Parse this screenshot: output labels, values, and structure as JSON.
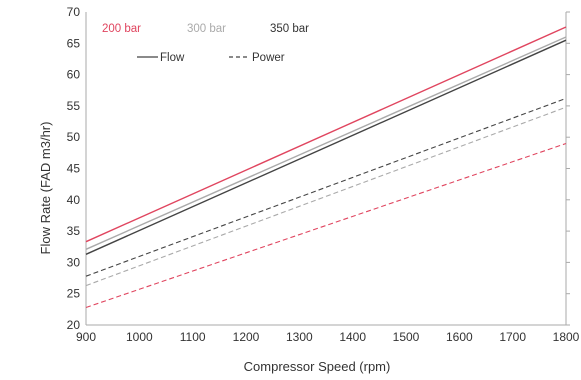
{
  "chart_data": {
    "type": "line",
    "xlabel": "Compressor Speed (rpm)",
    "ylabel": "Flow Rate (FAD m3/hr)",
    "xlim": [
      900,
      1800
    ],
    "ylim": [
      20,
      70
    ],
    "x_ticks": [
      "900",
      "1000",
      "1100",
      "1200",
      "1300",
      "1400",
      "1500",
      "1600",
      "1700",
      "1800"
    ],
    "y_ticks": [
      "20",
      "25",
      "30",
      "35",
      "40",
      "45",
      "50",
      "55",
      "60",
      "65",
      "70"
    ],
    "grid": false,
    "legend": {
      "placement": "top-left",
      "pressures": [
        {
          "label": "200 bar",
          "color": "#e0455f"
        },
        {
          "label": "300 bar",
          "color": "#aaaaaa"
        },
        {
          "label": "350 bar",
          "color": "#333333"
        }
      ],
      "styles": [
        {
          "label": "Flow",
          "dash": "solid"
        },
        {
          "label": "Power",
          "dash": "dashed"
        }
      ]
    },
    "series": [
      {
        "pressure": "200 bar",
        "kind": "Flow",
        "color": "#e0455f",
        "dash": "solid",
        "x": [
          900,
          1800
        ],
        "y": [
          33.3,
          67.6
        ]
      },
      {
        "pressure": "300 bar",
        "kind": "Flow",
        "color": "#aaaaaa",
        "dash": "solid",
        "x": [
          900,
          1800
        ],
        "y": [
          32.1,
          66.0
        ]
      },
      {
        "pressure": "350 bar",
        "kind": "Flow",
        "color": "#444444",
        "dash": "solid",
        "x": [
          900,
          1800
        ],
        "y": [
          31.3,
          65.5
        ]
      },
      {
        "pressure": "350 bar",
        "kind": "Power",
        "color": "#444444",
        "dash": "dashed",
        "x": [
          900,
          1800
        ],
        "y": [
          27.8,
          56.2
        ]
      },
      {
        "pressure": "300 bar",
        "kind": "Power",
        "color": "#aaaaaa",
        "dash": "dashed",
        "x": [
          900,
          1800
        ],
        "y": [
          26.3,
          54.8
        ]
      },
      {
        "pressure": "200 bar",
        "kind": "Power",
        "color": "#e0455f",
        "dash": "dashed",
        "x": [
          900,
          1800
        ],
        "y": [
          22.8,
          49.0
        ]
      }
    ]
  }
}
